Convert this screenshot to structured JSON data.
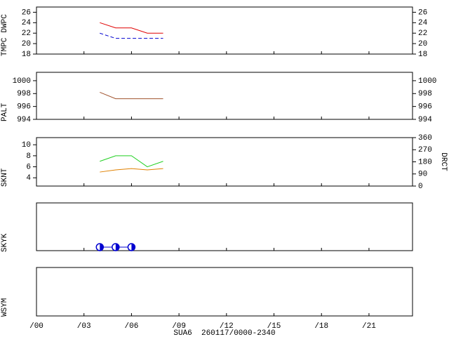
{
  "chart_data": [
    {
      "type": "line",
      "ylim": [
        18,
        27
      ],
      "yticks": [
        18,
        20,
        22,
        24,
        26
      ],
      "right_labels": true,
      "series": [
        {
          "name": "TMPC",
          "color": "#e00000",
          "style": "solid",
          "x": [
            4,
            5,
            6,
            7,
            8
          ],
          "values": [
            24,
            23,
            23,
            22,
            22
          ]
        },
        {
          "name": "DWPC",
          "color": "#0000d0",
          "style": "dashed",
          "x": [
            4,
            5,
            6,
            7,
            8
          ],
          "values": [
            22,
            21,
            21,
            21,
            21
          ]
        }
      ]
    },
    {
      "type": "line",
      "ylim": [
        994,
        1001.3
      ],
      "yticks": [
        994,
        996,
        998,
        1000
      ],
      "right_labels": true,
      "series": [
        {
          "name": "PALT",
          "color": "#a0522d",
          "style": "solid",
          "x": [
            4,
            5,
            6,
            7,
            8
          ],
          "values": [
            998.2,
            997.2,
            997.2,
            997.2,
            997.2
          ]
        }
      ]
    },
    {
      "type": "line",
      "ylim": [
        2.5,
        11.3
      ],
      "yticks": [
        4,
        6,
        8,
        10
      ],
      "y2lim": [
        0,
        360
      ],
      "y2ticks": [
        0,
        90,
        180,
        270,
        360
      ],
      "series": [
        {
          "name": "SKNT",
          "color": "#20d020",
          "style": "solid",
          "x": [
            4,
            5,
            6,
            7,
            8
          ],
          "values": [
            7,
            8,
            8,
            6,
            7
          ]
        },
        {
          "name": "DRCT",
          "color": "#e08000",
          "style": "solid",
          "axis": "y2",
          "x": [
            4,
            5,
            6,
            7,
            8
          ],
          "values": [
            104,
            120,
            130,
            120,
            130
          ]
        }
      ]
    },
    {
      "type": "symbol",
      "series": [
        {
          "name": "SKYK",
          "color": "#0000d0",
          "x": [
            4,
            5,
            6
          ]
        }
      ]
    },
    {
      "type": "symbol",
      "series": [
        {
          "name": "WSYM",
          "color": "#e00000",
          "x": []
        }
      ],
      "xlim": [
        0,
        23.75
      ],
      "xticks": [
        {
          "value": 0,
          "label": "/00"
        },
        {
          "value": 3,
          "label": "/03"
        },
        {
          "value": 6,
          "label": "/06"
        },
        {
          "value": 9,
          "label": "/09"
        },
        {
          "value": 12,
          "label": "/12"
        },
        {
          "value": 15,
          "label": "/15"
        },
        {
          "value": 18,
          "label": "/18"
        },
        {
          "value": 21,
          "label": "/21"
        }
      ],
      "xlabel": "SUA6  260117/0000-2340"
    }
  ]
}
